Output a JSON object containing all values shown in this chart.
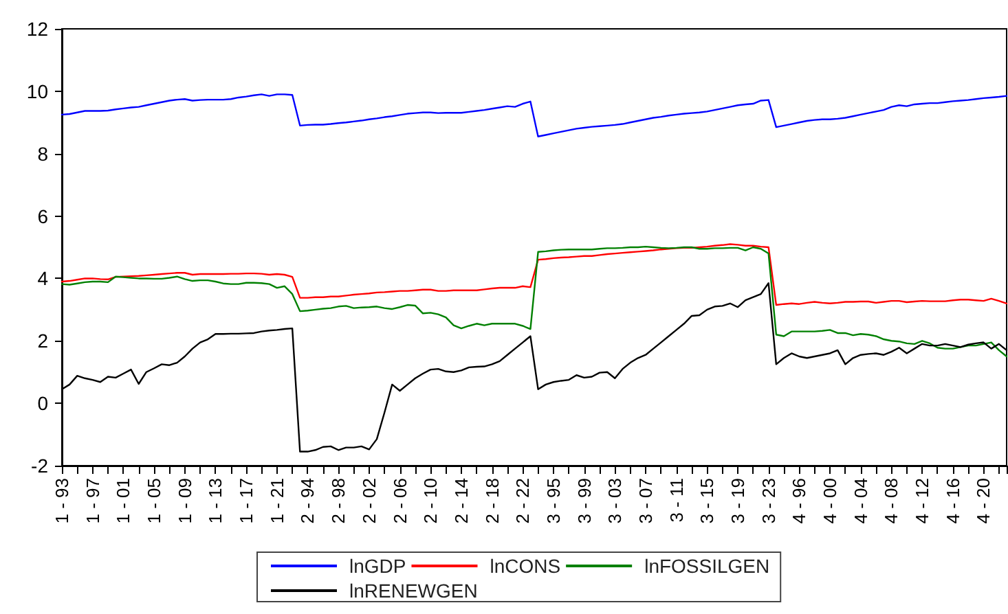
{
  "chart_data": {
    "type": "line",
    "categories": [
      "1 - 93",
      null,
      null,
      null,
      "1 - 97",
      null,
      null,
      null,
      "1 - 01",
      null,
      null,
      null,
      "1 - 05",
      null,
      null,
      null,
      "1 - 09",
      null,
      null,
      null,
      "1 - 13",
      null,
      null,
      null,
      "1 - 17",
      null,
      null,
      null,
      "1 - 21",
      null,
      null,
      null,
      "2 - 94",
      null,
      null,
      null,
      "2 - 98",
      null,
      null,
      null,
      "2 - 02",
      null,
      null,
      null,
      "2 - 06",
      null,
      null,
      null,
      "2 - 10",
      null,
      null,
      null,
      "2 - 14",
      null,
      null,
      null,
      "2 - 18",
      null,
      null,
      null,
      "2 - 22",
      null,
      null,
      null,
      "3 - 95",
      null,
      null,
      null,
      "3 - 99",
      null,
      null,
      null,
      "3 - 03",
      null,
      null,
      null,
      "3 - 07",
      null,
      null,
      null,
      "3 - 11",
      null,
      null,
      null,
      "3 - 15",
      null,
      null,
      null,
      "3 - 19",
      null,
      null,
      null,
      "3 - 23",
      null,
      null,
      null,
      "4 - 96",
      null,
      null,
      null,
      "4 - 00",
      null,
      null,
      null,
      "4 - 04",
      null,
      null,
      null,
      "4 - 08",
      null,
      null,
      null,
      "4 - 12",
      null,
      null,
      null,
      "4 - 16",
      null,
      null,
      null,
      "4 - 20",
      null,
      null,
      null
    ],
    "series": [
      {
        "name": "lnGDP",
        "color": "#0000ff",
        "values": [
          9.25,
          9.27,
          9.32,
          9.37,
          9.37,
          9.37,
          9.38,
          9.42,
          9.45,
          9.48,
          9.5,
          9.55,
          9.6,
          9.65,
          9.7,
          9.73,
          9.75,
          9.7,
          9.72,
          9.73,
          9.73,
          9.73,
          9.75,
          9.8,
          9.83,
          9.87,
          9.9,
          9.85,
          9.9,
          9.9,
          9.88,
          8.9,
          8.92,
          8.93,
          8.93,
          8.95,
          8.98,
          9.0,
          9.03,
          9.06,
          9.1,
          9.13,
          9.17,
          9.2,
          9.24,
          9.28,
          9.3,
          9.32,
          9.32,
          9.3,
          9.31,
          9.31,
          9.31,
          9.34,
          9.37,
          9.4,
          9.44,
          9.48,
          9.52,
          9.5,
          9.6,
          9.67,
          8.55,
          8.6,
          8.65,
          8.7,
          8.75,
          8.8,
          8.83,
          8.86,
          8.88,
          8.9,
          8.92,
          8.95,
          9.0,
          9.05,
          9.1,
          9.15,
          9.18,
          9.22,
          9.25,
          9.28,
          9.3,
          9.32,
          9.35,
          9.4,
          9.45,
          9.5,
          9.55,
          9.58,
          9.6,
          9.7,
          9.72,
          8.85,
          8.9,
          8.95,
          9.0,
          9.05,
          9.08,
          9.1,
          9.1,
          9.12,
          9.15,
          9.2,
          9.25,
          9.3,
          9.35,
          9.4,
          9.5,
          9.55,
          9.52,
          9.58,
          9.6,
          9.62,
          9.62,
          9.65,
          9.68,
          9.7,
          9.72,
          9.75,
          9.78,
          9.8,
          9.82,
          9.85
        ]
      },
      {
        "name": "lnCONS",
        "color": "#ff0000",
        "values": [
          3.9,
          3.92,
          3.96,
          4.0,
          4.0,
          3.98,
          3.97,
          4.05,
          4.06,
          4.07,
          4.08,
          4.1,
          4.12,
          4.14,
          4.16,
          4.18,
          4.18,
          4.12,
          4.14,
          4.14,
          4.14,
          4.14,
          4.15,
          4.15,
          4.16,
          4.16,
          4.15,
          4.12,
          4.14,
          4.12,
          4.05,
          3.38,
          3.38,
          3.4,
          3.4,
          3.42,
          3.42,
          3.45,
          3.48,
          3.5,
          3.52,
          3.55,
          3.56,
          3.58,
          3.6,
          3.6,
          3.62,
          3.64,
          3.64,
          3.6,
          3.6,
          3.62,
          3.62,
          3.62,
          3.62,
          3.65,
          3.68,
          3.7,
          3.7,
          3.7,
          3.75,
          3.72,
          4.6,
          4.62,
          4.65,
          4.67,
          4.68,
          4.7,
          4.72,
          4.72,
          4.75,
          4.78,
          4.8,
          4.82,
          4.84,
          4.86,
          4.88,
          4.9,
          4.93,
          4.95,
          4.97,
          4.98,
          4.98,
          5.0,
          5.02,
          5.05,
          5.07,
          5.1,
          5.08,
          5.05,
          5.05,
          5.02,
          5.0,
          3.15,
          3.18,
          3.2,
          3.18,
          3.22,
          3.25,
          3.22,
          3.2,
          3.22,
          3.25,
          3.25,
          3.26,
          3.26,
          3.22,
          3.25,
          3.28,
          3.28,
          3.24,
          3.26,
          3.28,
          3.27,
          3.27,
          3.27,
          3.3,
          3.32,
          3.32,
          3.3,
          3.28,
          3.35,
          3.28,
          3.2
        ]
      },
      {
        "name": "lnFOSSILGEN",
        "color": "#008000",
        "values": [
          3.82,
          3.8,
          3.84,
          3.88,
          3.9,
          3.9,
          3.88,
          4.06,
          4.04,
          4.02,
          4.0,
          4.0,
          3.99,
          3.99,
          4.02,
          4.06,
          3.98,
          3.92,
          3.94,
          3.94,
          3.9,
          3.84,
          3.82,
          3.82,
          3.86,
          3.86,
          3.85,
          3.82,
          3.7,
          3.75,
          3.5,
          2.95,
          2.97,
          3.0,
          3.03,
          3.05,
          3.1,
          3.12,
          3.05,
          3.07,
          3.08,
          3.1,
          3.05,
          3.02,
          3.08,
          3.15,
          3.13,
          2.88,
          2.9,
          2.85,
          2.75,
          2.5,
          2.4,
          2.48,
          2.55,
          2.5,
          2.55,
          2.55,
          2.55,
          2.55,
          2.48,
          2.38,
          4.85,
          4.87,
          4.9,
          4.92,
          4.93,
          4.93,
          4.93,
          4.93,
          4.95,
          4.97,
          4.97,
          4.98,
          5.0,
          5.0,
          5.02,
          5.0,
          4.98,
          4.97,
          4.98,
          5.0,
          5.0,
          4.95,
          4.95,
          4.97,
          4.97,
          4.98,
          4.98,
          4.9,
          5.0,
          4.95,
          4.8,
          2.2,
          2.15,
          2.3,
          2.3,
          2.3,
          2.3,
          2.32,
          2.35,
          2.25,
          2.25,
          2.18,
          2.22,
          2.2,
          2.15,
          2.05,
          2.0,
          1.98,
          1.92,
          1.9,
          2.0,
          1.92,
          1.78,
          1.75,
          1.75,
          1.8,
          1.85,
          1.85,
          1.9,
          1.95,
          1.7,
          1.5
        ]
      },
      {
        "name": "lnRENEWGEN",
        "color": "#000000",
        "values": [
          0.45,
          0.6,
          0.88,
          0.8,
          0.75,
          0.68,
          0.85,
          0.82,
          0.95,
          1.08,
          0.62,
          1.0,
          1.12,
          1.25,
          1.22,
          1.3,
          1.5,
          1.75,
          1.95,
          2.05,
          2.22,
          2.22,
          2.23,
          2.23,
          2.24,
          2.25,
          2.3,
          2.33,
          2.35,
          2.38,
          2.4,
          -1.55,
          -1.55,
          -1.5,
          -1.4,
          -1.38,
          -1.5,
          -1.42,
          -1.42,
          -1.38,
          -1.48,
          -1.15,
          -0.3,
          0.6,
          0.4,
          0.6,
          0.8,
          0.95,
          1.08,
          1.1,
          1.02,
          1.0,
          1.05,
          1.15,
          1.17,
          1.18,
          1.25,
          1.35,
          1.55,
          1.75,
          1.95,
          2.15,
          0.45,
          0.6,
          0.68,
          0.72,
          0.75,
          0.9,
          0.82,
          0.85,
          0.98,
          1.0,
          0.8,
          1.1,
          1.3,
          1.45,
          1.55,
          1.75,
          1.95,
          2.15,
          2.35,
          2.55,
          2.8,
          2.82,
          3.0,
          3.1,
          3.12,
          3.2,
          3.08,
          3.3,
          3.4,
          3.5,
          3.85,
          1.25,
          1.45,
          1.6,
          1.5,
          1.45,
          1.5,
          1.55,
          1.6,
          1.7,
          1.25,
          1.45,
          1.55,
          1.58,
          1.6,
          1.55,
          1.65,
          1.78,
          1.6,
          1.75,
          1.9,
          1.85,
          1.85,
          1.9,
          1.85,
          1.8,
          1.88,
          1.92,
          1.95,
          1.75,
          1.9,
          1.7
        ]
      }
    ],
    "ylim": [
      -2,
      12
    ],
    "yticks": [
      -2,
      0,
      2,
      4,
      6,
      8,
      10,
      12
    ],
    "grid": false,
    "legend": "bottom",
    "marker": "none",
    "line_style": "solid"
  }
}
